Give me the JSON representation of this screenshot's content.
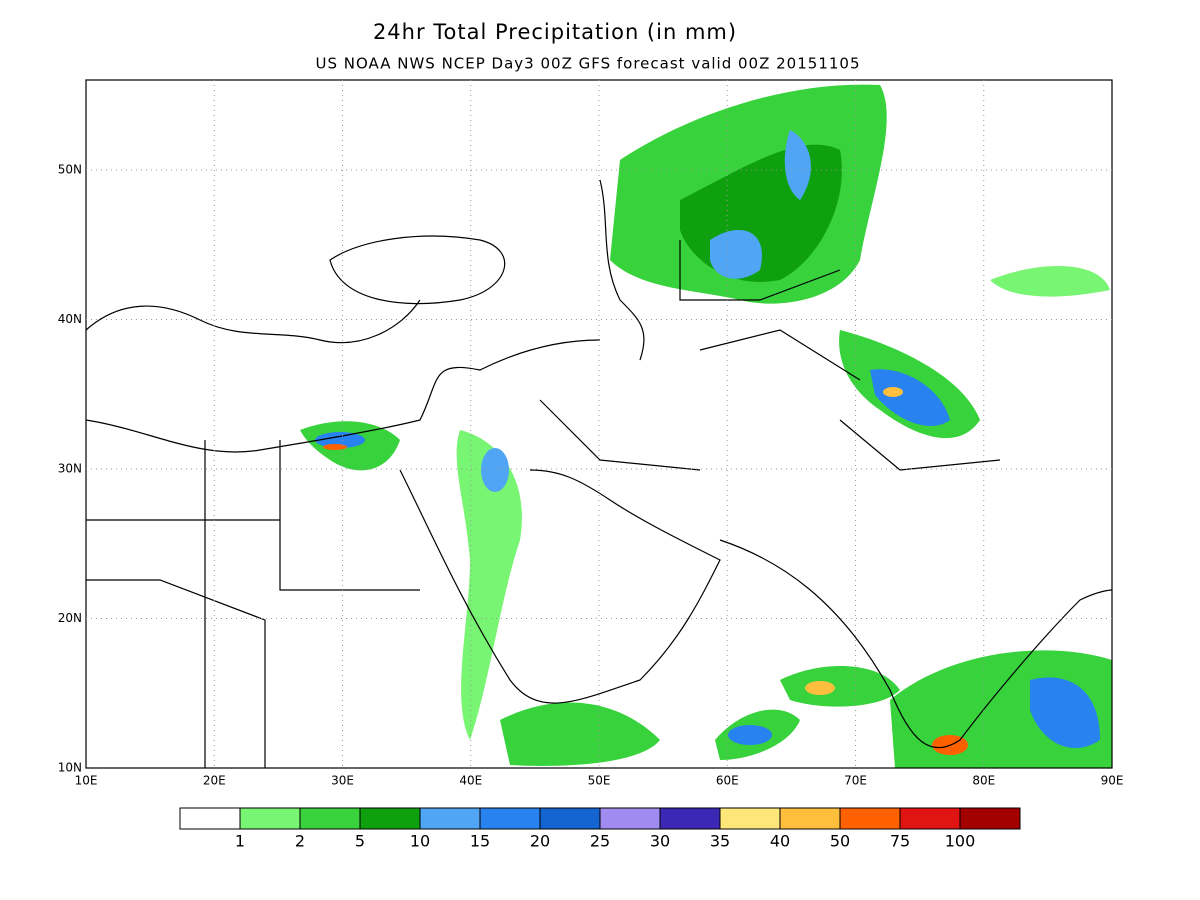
{
  "header": {
    "title": "24hr Total Precipitation (in mm)",
    "subtitle": "US NOAA NWS NCEP Day3 00Z GFS forecast valid 00Z 20151105"
  },
  "map": {
    "lon_labels": [
      "10E",
      "20E",
      "30E",
      "40E",
      "50E",
      "60E",
      "70E",
      "80E",
      "90E"
    ],
    "lat_labels": [
      "10N",
      "20N",
      "30N",
      "40N",
      "50N"
    ]
  },
  "legend": {
    "colors": [
      "#ffffff",
      "#78f573",
      "#37d23c",
      "#0fa00f",
      "#50a5f5",
      "#2882f0",
      "#1464d2",
      "#a08cf0",
      "#3c28b4",
      "#ffe678",
      "#ffbe3c",
      "#ff6000",
      "#e11414",
      "#a50000"
    ],
    "labels": [
      "1",
      "2",
      "5",
      "10",
      "15",
      "20",
      "25",
      "30",
      "35",
      "40",
      "50",
      "75",
      "100"
    ]
  }
}
